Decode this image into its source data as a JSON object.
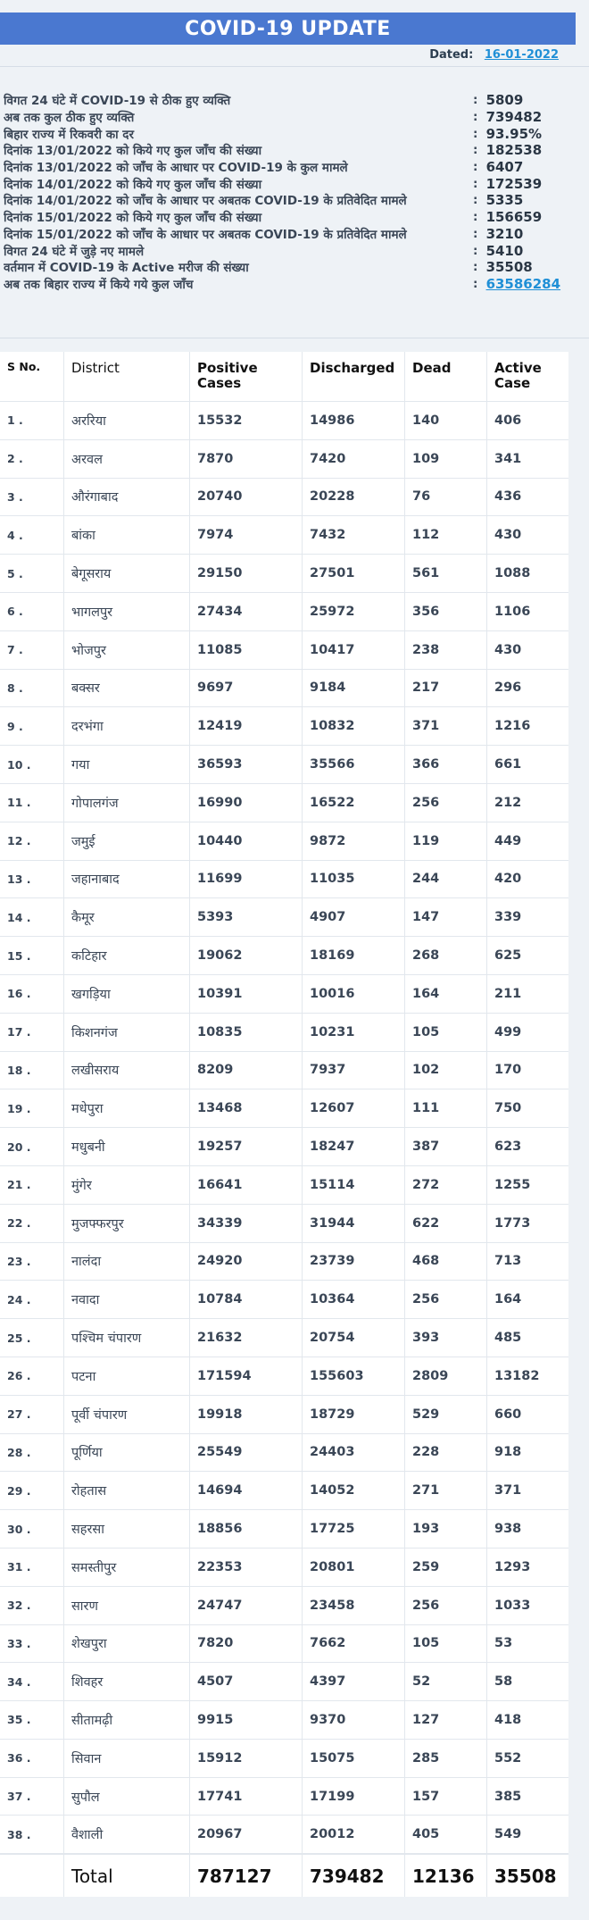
{
  "header": {
    "title": "COVID-19 UPDATE",
    "dated_label": "Dated:",
    "dated_value": "16-01-2022"
  },
  "summary": [
    {
      "label": "विगत 24 घंटे में COVID-19 से ठीक हुए व्यक्ति",
      "value": "5809"
    },
    {
      "label": "अब तक कुल ठीक हुए व्यक्ति",
      "value": "739482"
    },
    {
      "label": "बिहार राज्य में रिकवरी का दर",
      "value": "93.95%"
    },
    {
      "label": "दिनांक 13/01/2022 को किये गए कुल जाँच की संख्या",
      "value": "182538"
    },
    {
      "label": "दिनांक 13/01/2022 को जाँच के आधार पर COVID-19 के कुल मामले",
      "value": "6407"
    },
    {
      "label": "दिनांक 14/01/2022 को किये गए कुल जाँच की संख्या",
      "value": "172539"
    },
    {
      "label": "दिनांक 14/01/2022 को जाँच के आधार पर अबतक COVID-19 के प्रतिवेदित मामले",
      "value": "5335"
    },
    {
      "label": "दिनांक 15/01/2022 को किये गए कुल जाँच की संख्या",
      "value": "156659"
    },
    {
      "label": "दिनांक 15/01/2022 को जाँच के आधार पर अबतक COVID-19 के प्रतिवेदित मामले",
      "value": "3210"
    },
    {
      "label": "विगत 24 घंटे में जुड़े नए मामले",
      "value": "5410"
    },
    {
      "label": "वर्तमान में COVID-19 के Active मरीज की संख्या",
      "value": "35508"
    },
    {
      "label": "अब तक बिहार राज्य में किये गये कुल जाँच",
      "value": "63586284",
      "link": true
    }
  ],
  "colon": ":",
  "table": {
    "headers": [
      "S No.",
      "District",
      "Positive Cases",
      "Discharged",
      "Dead",
      "Active Case"
    ],
    "rows": [
      [
        "1 .",
        "अररिया",
        "15532",
        "14986",
        "140",
        "406"
      ],
      [
        "2 .",
        "अरवल",
        "7870",
        "7420",
        "109",
        "341"
      ],
      [
        "3 .",
        "औरंगाबाद",
        "20740",
        "20228",
        "76",
        "436"
      ],
      [
        "4 .",
        "बांका",
        "7974",
        "7432",
        "112",
        "430"
      ],
      [
        "5 .",
        "बेगूसराय",
        "29150",
        "27501",
        "561",
        "1088"
      ],
      [
        "6 .",
        "भागलपुर",
        "27434",
        "25972",
        "356",
        "1106"
      ],
      [
        "7 .",
        "भोजपुर",
        "11085",
        "10417",
        "238",
        "430"
      ],
      [
        "8 .",
        "बक्सर",
        "9697",
        "9184",
        "217",
        "296"
      ],
      [
        "9 .",
        "दरभंगा",
        "12419",
        "10832",
        "371",
        "1216"
      ],
      [
        "10 .",
        "गया",
        "36593",
        "35566",
        "366",
        "661"
      ],
      [
        "11 .",
        "गोपालगंज",
        "16990",
        "16522",
        "256",
        "212"
      ],
      [
        "12 .",
        "जमुई",
        "10440",
        "9872",
        "119",
        "449"
      ],
      [
        "13 .",
        "जहानाबाद",
        "11699",
        "11035",
        "244",
        "420"
      ],
      [
        "14 .",
        "कैमूर",
        "5393",
        "4907",
        "147",
        "339"
      ],
      [
        "15 .",
        "कटिहार",
        "19062",
        "18169",
        "268",
        "625"
      ],
      [
        "16 .",
        "खगड़िया",
        "10391",
        "10016",
        "164",
        "211"
      ],
      [
        "17 .",
        "किशनगंज",
        "10835",
        "10231",
        "105",
        "499"
      ],
      [
        "18 .",
        "लखीसराय",
        "8209",
        "7937",
        "102",
        "170"
      ],
      [
        "19 .",
        "मधेपुरा",
        "13468",
        "12607",
        "111",
        "750"
      ],
      [
        "20 .",
        "मधुबनी",
        "19257",
        "18247",
        "387",
        "623"
      ],
      [
        "21 .",
        "मुंगेर",
        "16641",
        "15114",
        "272",
        "1255"
      ],
      [
        "22 .",
        "मुजफ्फरपुर",
        "34339",
        "31944",
        "622",
        "1773"
      ],
      [
        "23 .",
        "नालंदा",
        "24920",
        "23739",
        "468",
        "713"
      ],
      [
        "24 .",
        "नवादा",
        "10784",
        "10364",
        "256",
        "164"
      ],
      [
        "25 .",
        "पश्चिम चंपारण",
        "21632",
        "20754",
        "393",
        "485"
      ],
      [
        "26 .",
        "पटना",
        "171594",
        "155603",
        "2809",
        "13182"
      ],
      [
        "27 .",
        "पूर्वी चंपारण",
        "19918",
        "18729",
        "529",
        "660"
      ],
      [
        "28 .",
        "पूर्णिया",
        "25549",
        "24403",
        "228",
        "918"
      ],
      [
        "29 .",
        "रोहतास",
        "14694",
        "14052",
        "271",
        "371"
      ],
      [
        "30 .",
        "सहरसा",
        "18856",
        "17725",
        "193",
        "938"
      ],
      [
        "31 .",
        "समस्तीपुर",
        "22353",
        "20801",
        "259",
        "1293"
      ],
      [
        "32 .",
        "सारण",
        "24747",
        "23458",
        "256",
        "1033"
      ],
      [
        "33 .",
        "शेखपुरा",
        "7820",
        "7662",
        "105",
        "53"
      ],
      [
        "34 .",
        "शिवहर",
        "4507",
        "4397",
        "52",
        "58"
      ],
      [
        "35 .",
        "सीतामढ़ी",
        "9915",
        "9370",
        "127",
        "418"
      ],
      [
        "36 .",
        "सिवान",
        "15912",
        "15075",
        "285",
        "552"
      ],
      [
        "37 .",
        "सुपौल",
        "17741",
        "17199",
        "157",
        "385"
      ],
      [
        "38 .",
        "वैशाली",
        "20967",
        "20012",
        "405",
        "549"
      ]
    ],
    "total": [
      "",
      "Total",
      "787127",
      "739482",
      "12136",
      "35508"
    ]
  }
}
